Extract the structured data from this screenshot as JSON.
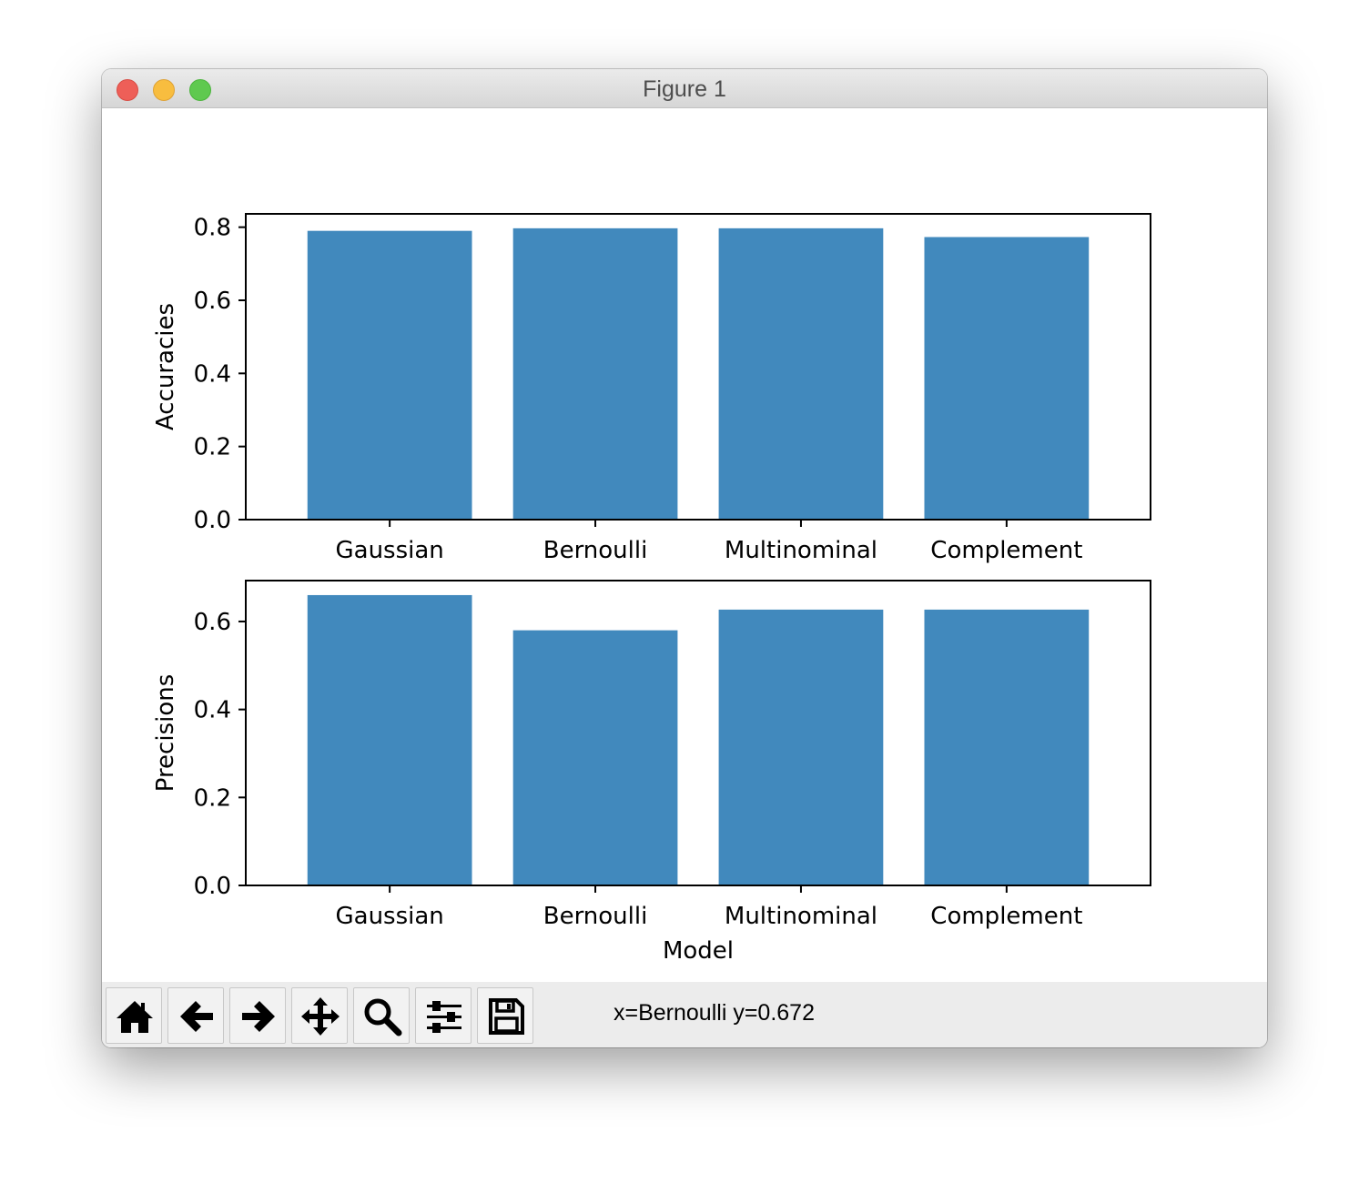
{
  "window": {
    "title": "Figure 1"
  },
  "toolbar": {
    "buttons": [
      {
        "name": "home-button",
        "icon": "home-icon"
      },
      {
        "name": "back-button",
        "icon": "arrow-left-icon"
      },
      {
        "name": "forward-button",
        "icon": "arrow-right-icon"
      },
      {
        "name": "pan-button",
        "icon": "move-icon"
      },
      {
        "name": "zoom-button",
        "icon": "magnifier-icon"
      },
      {
        "name": "configure-subplots-button",
        "icon": "sliders-icon"
      },
      {
        "name": "save-button",
        "icon": "floppy-disk-icon"
      }
    ],
    "status": "x=Bernoulli y=0.672"
  },
  "colors": {
    "bar": "#4189bd"
  },
  "chart_data": [
    {
      "type": "bar",
      "categories": [
        "Gaussian",
        "Bernoulli",
        "Multinominal",
        "Complement"
      ],
      "values": [
        0.79,
        0.797,
        0.797,
        0.773
      ],
      "ylabel": "Accuracies",
      "xlabel": "",
      "ylim": [
        0,
        0.8365
      ],
      "yticks": [
        {
          "value": 0.0,
          "label": "0.0"
        },
        {
          "value": 0.2,
          "label": "0.2"
        },
        {
          "value": 0.4,
          "label": "0.4"
        },
        {
          "value": 0.6,
          "label": "0.6"
        },
        {
          "value": 0.8,
          "label": "0.8"
        }
      ],
      "grid": false,
      "legend": "none"
    },
    {
      "type": "bar",
      "categories": [
        "Gaussian",
        "Bernoulli",
        "Multinominal",
        "Complement"
      ],
      "values": [
        0.66,
        0.58,
        0.627,
        0.627
      ],
      "ylabel": "Precisions",
      "xlabel": "Model",
      "ylim": [
        0,
        0.693
      ],
      "yticks": [
        {
          "value": 0.0,
          "label": "0.0"
        },
        {
          "value": 0.2,
          "label": "0.2"
        },
        {
          "value": 0.4,
          "label": "0.4"
        },
        {
          "value": 0.6,
          "label": "0.6"
        }
      ],
      "grid": false,
      "legend": "none"
    }
  ]
}
